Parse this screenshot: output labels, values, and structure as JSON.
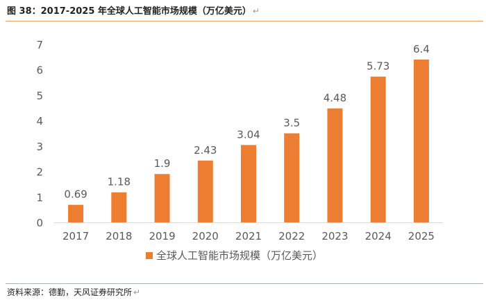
{
  "header": {
    "title": "图 38：2017-2025 年全球人工智能市场规模（万亿美元）",
    "return_mark": "↵"
  },
  "footer": {
    "source": "资料来源：德勤，天风证券研究所",
    "return_mark": "↵"
  },
  "colors": {
    "bar": "#ed7d31",
    "accent_rule": "#e9a36a",
    "axis": "#d9d9d9",
    "text": "#595959"
  },
  "chart_data": {
    "type": "bar",
    "title": "",
    "xlabel": "",
    "ylabel": "",
    "categories": [
      "2017",
      "2018",
      "2019",
      "2020",
      "2021",
      "2022",
      "2023",
      "2024",
      "2025"
    ],
    "series": [
      {
        "name": "全球人工智能市场规模（万亿美元）",
        "values": [
          0.69,
          1.18,
          1.9,
          2.43,
          3.04,
          3.5,
          4.48,
          5.73,
          6.4
        ],
        "labels": [
          "0.69",
          "1.18",
          "1.9",
          "2.43",
          "3.04",
          "3.5",
          "4.48",
          "5.73",
          "6.4"
        ]
      }
    ],
    "ylim": [
      0,
      7
    ],
    "yticks": [
      "0",
      "1",
      "2",
      "3",
      "4",
      "5",
      "6",
      "7"
    ],
    "grid": false,
    "legend": "bottom-center"
  }
}
